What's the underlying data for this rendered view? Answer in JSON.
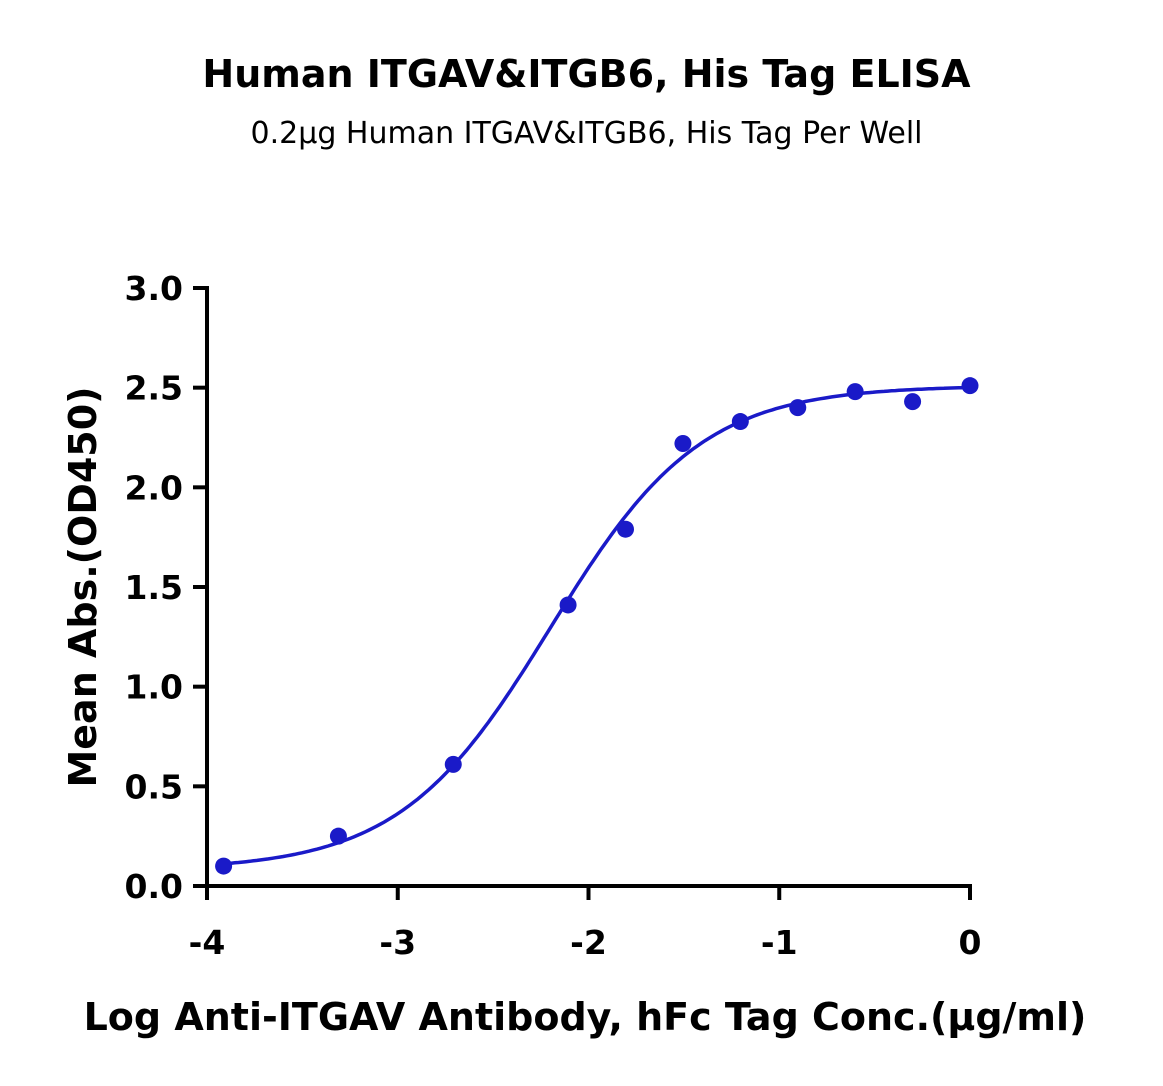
{
  "chart_data": {
    "type": "scatter",
    "title": "Human ITGAV&ITGB6, His Tag ELISA",
    "subtitle": "0.2μg Human ITGAV&ITGB6, His Tag Per Well",
    "xlabel": "Log Anti-ITGAV Antibody, hFc Tag Conc.(μg/ml)",
    "ylabel": "Mean Abs.(OD450)",
    "xlim": [
      -4,
      0
    ],
    "ylim": [
      0,
      3.0
    ],
    "xticks": [
      "-4",
      "-3",
      "-2",
      "-1",
      "0"
    ],
    "yticks": [
      "0.0",
      "0.5",
      "1.0",
      "1.5",
      "2.0",
      "2.5",
      "3.0"
    ],
    "grid": false,
    "color": "#1a1ac8",
    "points": {
      "x": [
        -3.913,
        -3.311,
        -2.709,
        -2.107,
        -1.806,
        -1.505,
        -1.204,
        -0.903,
        -0.602,
        -0.301,
        0
      ],
      "y": [
        0.1,
        0.25,
        0.61,
        1.41,
        1.79,
        2.22,
        2.33,
        2.4,
        2.48,
        2.43,
        2.51
      ]
    },
    "fit": {
      "model": "4PL",
      "bottom": 0.08,
      "top": 2.51,
      "logEC50": -2.2,
      "hill": 1.1
    }
  }
}
